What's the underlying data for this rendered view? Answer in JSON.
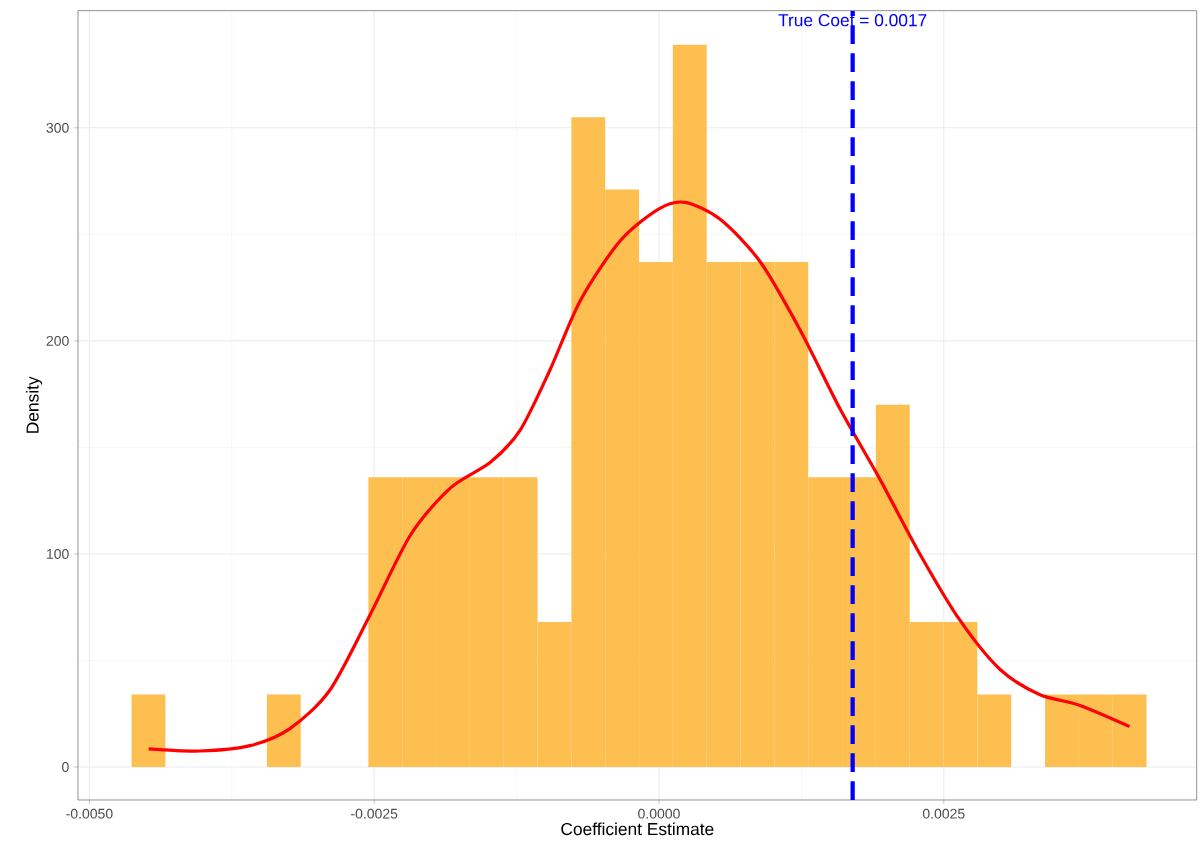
{
  "chart_data": {
    "type": "histogram",
    "xlabel": "Coefficient Estimate",
    "ylabel": "Density",
    "color": "#fdbf50",
    "bins": [
      -0.00463,
      -0.004333,
      -0.004036,
      -0.003739,
      -0.003442,
      -0.003145,
      -0.002848,
      -0.002551,
      -0.002254,
      -0.001957,
      -0.00166,
      -0.001363,
      -0.001066,
      -0.000769,
      -0.000472,
      -0.000175,
      0.000122,
      0.000419,
      0.000716,
      0.001013,
      0.00131,
      0.001607,
      0.001904,
      0.002201,
      0.002498,
      0.002795,
      0.003092,
      0.003389,
      0.003686,
      0.003983,
      0.00428
    ],
    "values": [
      34,
      0,
      0,
      0,
      34,
      0,
      0,
      136,
      136,
      136,
      136,
      136,
      68,
      305,
      271,
      237,
      339,
      237,
      237,
      237,
      136,
      136,
      170,
      68,
      68,
      34,
      0,
      34,
      34,
      34
    ],
    "series": [
      {
        "type": "line",
        "color": "#ff0000",
        "x": [
          -0.00448,
          -0.00403,
          -0.00359,
          -0.00324,
          -0.00289,
          -0.00254,
          -0.00218,
          -0.00183,
          -0.00148,
          -0.00122,
          -0.00096,
          -0.00069,
          -0.00034,
          0.0,
          0.00023,
          0.00054,
          0.00089,
          0.00124,
          0.00159,
          0.00194,
          0.00229,
          0.00264,
          0.00299,
          0.00334,
          0.00369,
          0.00413
        ],
        "values": [
          8.5,
          7.5,
          10,
          18,
          36,
          71,
          109,
          131,
          143,
          158,
          186,
          219,
          247,
          262,
          265,
          257,
          237,
          205,
          168,
          135,
          100,
          69,
          46,
          34,
          29,
          19
        ]
      }
    ],
    "ref_lines": [
      {
        "axis": "x",
        "value": 0.0017,
        "label": "True Coef = 0.0017",
        "color": "#0000ff",
        "line_style": "dashed"
      }
    ],
    "xlim": [
      -0.0051,
      0.00472
    ],
    "ylim": [
      -15.5,
      355
    ],
    "xticks": [
      {
        "value": -0.005,
        "label": "-0.0050"
      },
      {
        "value": -0.0025,
        "label": "-0.0025"
      },
      {
        "value": 0,
        "label": "0.0000"
      },
      {
        "value": 0.0025,
        "label": "0.0025"
      }
    ],
    "yticks": [
      0,
      100,
      200,
      300
    ],
    "grid": true
  }
}
